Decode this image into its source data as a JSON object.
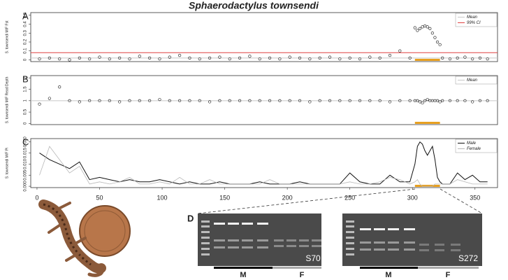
{
  "title": "Sphaerodactylus townsendi",
  "chart_data": [
    {
      "type": "scatter",
      "panel": "A",
      "ylabel": "S. townsendi M/F Fst",
      "x": [
        2,
        10,
        18,
        26,
        34,
        42,
        50,
        58,
        66,
        74,
        82,
        90,
        98,
        106,
        114,
        122,
        130,
        138,
        146,
        154,
        162,
        170,
        178,
        186,
        194,
        202,
        210,
        218,
        226,
        234,
        242,
        250,
        258,
        266,
        274,
        282,
        290,
        298,
        302,
        304,
        306,
        308,
        310,
        312,
        314,
        316,
        318,
        320,
        322,
        324,
        330,
        336,
        342,
        348,
        354,
        360
      ],
      "values": [
        0.01,
        0.02,
        0.01,
        0.0,
        0.02,
        0.01,
        0.03,
        0.01,
        0.02,
        0.01,
        0.04,
        0.02,
        0.01,
        0.03,
        0.05,
        0.02,
        0.01,
        0.02,
        0.03,
        0.01,
        0.02,
        0.04,
        0.01,
        0.02,
        0.01,
        0.03,
        0.02,
        0.01,
        0.02,
        0.03,
        0.01,
        0.02,
        0.01,
        0.03,
        0.02,
        0.05,
        0.1,
        0.02,
        0.36,
        0.33,
        0.35,
        0.37,
        0.38,
        0.37,
        0.35,
        0.3,
        0.25,
        0.2,
        0.17,
        0.02,
        0.01,
        0.02,
        0.03,
        0.01,
        0.02,
        0.01
      ],
      "reference_lines": [
        {
          "name": "Mean",
          "value": 0.02,
          "color": "#c8c8c8"
        },
        {
          "name": "99% CI",
          "value": 0.08,
          "color": "#e04040"
        }
      ],
      "highlight": [
        302,
        322
      ],
      "xlim": [
        -5,
        368
      ],
      "ylim": [
        -0.02,
        0.53
      ],
      "yticks": [
        0,
        0.1,
        0.2,
        0.3,
        0.4,
        0.5
      ]
    },
    {
      "type": "scatter",
      "panel": "B",
      "ylabel": "S. townsendi M/F Read Depth",
      "x": [
        2,
        10,
        18,
        26,
        34,
        42,
        50,
        58,
        66,
        74,
        82,
        90,
        98,
        106,
        114,
        122,
        130,
        138,
        146,
        154,
        162,
        170,
        178,
        186,
        194,
        202,
        210,
        218,
        226,
        234,
        242,
        250,
        258,
        266,
        274,
        282,
        290,
        298,
        302,
        304,
        306,
        308,
        310,
        312,
        314,
        316,
        318,
        320,
        322,
        324,
        330,
        336,
        342,
        348,
        354,
        360
      ],
      "values": [
        0.85,
        1.1,
        1.6,
        1.0,
        0.95,
        1.0,
        1.0,
        1.0,
        0.95,
        1.0,
        1.0,
        1.0,
        1.05,
        1.0,
        1.0,
        1.0,
        1.0,
        0.95,
        1.0,
        1.0,
        1.0,
        1.0,
        1.0,
        1.0,
        1.0,
        1.0,
        1.0,
        0.95,
        1.0,
        1.0,
        1.0,
        1.0,
        1.0,
        1.0,
        1.0,
        0.95,
        1.0,
        1.0,
        1.0,
        1.0,
        0.95,
        0.9,
        1.0,
        1.05,
        1.0,
        1.0,
        1.0,
        1.0,
        0.95,
        1.0,
        1.0,
        1.0,
        1.0,
        0.95,
        1.0,
        1.0
      ],
      "reference_lines": [
        {
          "name": "Mean",
          "value": 1,
          "color": "#c8c8c8"
        }
      ],
      "highlight": [
        302,
        322
      ],
      "xlim": [
        -5,
        368
      ],
      "ylim": [
        -0.05,
        2.1
      ],
      "yticks": [
        0,
        0.5,
        1,
        1.5,
        2
      ]
    },
    {
      "type": "line",
      "panel": "C",
      "ylabel": "S. townsendi M/F Pi",
      "x": [
        2,
        10,
        18,
        26,
        34,
        42,
        50,
        58,
        66,
        74,
        82,
        90,
        98,
        106,
        114,
        122,
        130,
        138,
        146,
        154,
        162,
        170,
        178,
        186,
        194,
        202,
        210,
        218,
        226,
        234,
        242,
        250,
        258,
        266,
        274,
        282,
        290,
        298,
        302,
        304,
        306,
        308,
        310,
        312,
        314,
        316,
        318,
        320,
        322,
        324,
        330,
        336,
        342,
        348,
        354,
        360
      ],
      "series": [
        {
          "name": "Male",
          "color": "#111111",
          "values": [
            0.015,
            0.012,
            0.01,
            0.008,
            0.011,
            0.003,
            0.004,
            0.003,
            0.002,
            0.003,
            0.002,
            0.002,
            0.003,
            0.002,
            0.001,
            0.002,
            0.001,
            0.001,
            0.002,
            0.001,
            0.001,
            0.001,
            0.002,
            0.001,
            0.001,
            0.001,
            0.002,
            0.001,
            0.001,
            0.001,
            0.001,
            0.006,
            0.002,
            0.001,
            0.001,
            0.005,
            0.002,
            0.002,
            0.01,
            0.018,
            0.02,
            0.019,
            0.016,
            0.014,
            0.016,
            0.018,
            0.012,
            0.004,
            0.002,
            0.001,
            0.001,
            0.006,
            0.003,
            0.005,
            0.002,
            0.002
          ]
        },
        {
          "name": "Female",
          "color": "#b8b8b8",
          "values": [
            0.005,
            0.018,
            0.012,
            0.006,
            0.009,
            0.001,
            0.002,
            0.001,
            0.002,
            0.004,
            0.001,
            0.001,
            0.002,
            0.001,
            0.004,
            0.001,
            0.001,
            0.003,
            0.001,
            0.001,
            0.001,
            0.001,
            0.001,
            0.003,
            0.001,
            0.001,
            0.001,
            0.001,
            0.001,
            0.001,
            0.001,
            0.002,
            0.001,
            0.001,
            0.002,
            0.004,
            0.003,
            0.001,
            0.002,
            0.003,
            0.001,
            0.0,
            0.0,
            0.0,
            0.0,
            0.0,
            0.001,
            0.001,
            0.001,
            0.001,
            0.001,
            0.003,
            0.002,
            0.001,
            0.001,
            0.001
          ]
        }
      ],
      "highlight": [
        302,
        322
      ],
      "xlim": [
        -5,
        368
      ],
      "xticks": [
        0,
        50,
        100,
        150,
        200,
        250,
        300,
        350
      ],
      "ylim": [
        -0.0006,
        0.0215
      ],
      "yticks": [
        {
          "value": 0,
          "label": "0.000"
        },
        {
          "value": 0.005,
          "label": "0.005"
        },
        {
          "value": 0.01,
          "label": "0.010"
        },
        {
          "value": 0.015,
          "label": "0.015"
        },
        {
          "value": 0.02,
          "label": "0.020"
        }
      ]
    }
  ],
  "gel_panel": "D",
  "gels": [
    {
      "sample": "S70",
      "groups": [
        "M",
        "F"
      ]
    },
    {
      "sample": "S272",
      "groups": [
        "M",
        "F"
      ]
    }
  ]
}
